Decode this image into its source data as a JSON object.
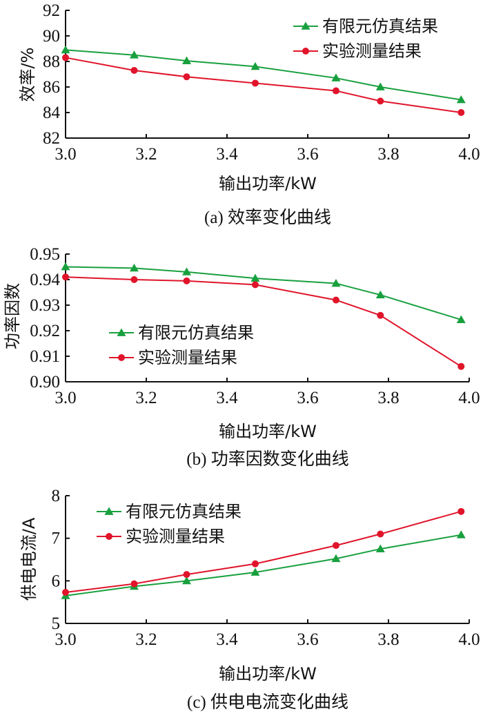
{
  "colors": {
    "simulation": "#18a03e",
    "experiment": "#e0142a",
    "axis": "#111111"
  },
  "chart_data": [
    {
      "type": "line",
      "xlabel": "输出功率/kW",
      "ylabel": "效率/%",
      "caption": "(a)  效率变化曲线",
      "xlim": [
        3.0,
        4.0
      ],
      "ylim": [
        82,
        92
      ],
      "xticks": [
        "3.0",
        "3.2",
        "3.4",
        "3.6",
        "3.8",
        "4.0"
      ],
      "yticks": [
        "82",
        "84",
        "86",
        "88",
        "90",
        "92"
      ],
      "legend_position": "top-right",
      "series": [
        {
          "name": "有限元仿真结果",
          "marker": "triangle",
          "x": [
            3.0,
            3.17,
            3.3,
            3.47,
            3.67,
            3.78,
            3.98
          ],
          "y": [
            88.9,
            88.5,
            88.05,
            87.6,
            86.7,
            86.0,
            85.0
          ]
        },
        {
          "name": "实验测量结果",
          "marker": "circle",
          "x": [
            3.0,
            3.17,
            3.3,
            3.47,
            3.67,
            3.78,
            3.98
          ],
          "y": [
            88.3,
            87.3,
            86.8,
            86.3,
            85.7,
            84.9,
            84.0
          ]
        }
      ]
    },
    {
      "type": "line",
      "xlabel": "输出功率/kW",
      "ylabel": "功率因数",
      "caption": "(b)  功率因数变化曲线",
      "xlim": [
        3.0,
        4.0
      ],
      "ylim": [
        0.9,
        0.95
      ],
      "xticks": [
        "3.0",
        "3.2",
        "3.4",
        "3.6",
        "3.8",
        "4.0"
      ],
      "yticks": [
        "0.90",
        "0.91",
        "0.92",
        "0.93",
        "0.94",
        "0.95"
      ],
      "legend_position": "lower-left",
      "series": [
        {
          "name": "有限元仿真结果",
          "marker": "triangle",
          "x": [
            3.0,
            3.17,
            3.3,
            3.47,
            3.67,
            3.78,
            3.98
          ],
          "y": [
            0.945,
            0.9445,
            0.943,
            0.9405,
            0.9385,
            0.934,
            0.9243
          ]
        },
        {
          "name": "实验测量结果",
          "marker": "circle",
          "x": [
            3.0,
            3.17,
            3.3,
            3.47,
            3.67,
            3.78,
            3.98
          ],
          "y": [
            0.941,
            0.94,
            0.9395,
            0.938,
            0.932,
            0.926,
            0.906
          ]
        }
      ]
    },
    {
      "type": "line",
      "xlabel": "输出功率/kW",
      "ylabel": "供电电流/A",
      "caption": "(c)  供电电流变化曲线",
      "xlim": [
        3.0,
        4.0
      ],
      "ylim": [
        5,
        8
      ],
      "xticks": [
        "3.0",
        "3.2",
        "3.4",
        "3.6",
        "3.8",
        "4.0"
      ],
      "yticks": [
        "5",
        "6",
        "7",
        "8"
      ],
      "legend_position": "top-left",
      "series": [
        {
          "name": "有限元仿真结果",
          "marker": "triangle",
          "x": [
            3.0,
            3.17,
            3.3,
            3.47,
            3.67,
            3.78,
            3.98
          ],
          "y": [
            5.65,
            5.87,
            6.0,
            6.2,
            6.52,
            6.75,
            7.08
          ]
        },
        {
          "name": "实验测量结果",
          "marker": "circle",
          "x": [
            3.0,
            3.17,
            3.3,
            3.47,
            3.67,
            3.78,
            3.98
          ],
          "y": [
            5.73,
            5.93,
            6.15,
            6.4,
            6.83,
            7.1,
            7.63
          ]
        }
      ]
    }
  ]
}
